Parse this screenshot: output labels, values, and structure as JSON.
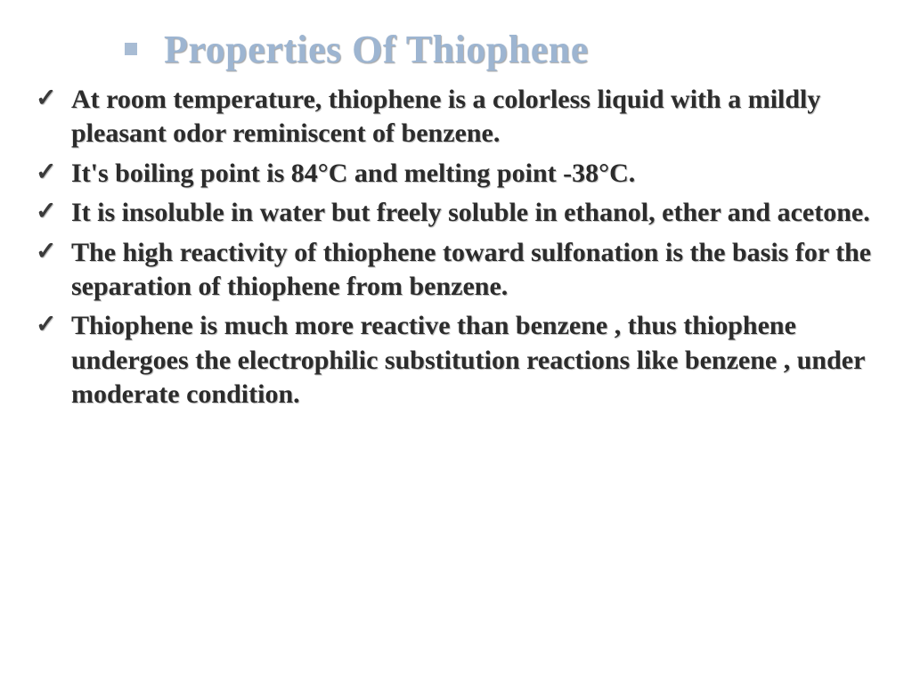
{
  "title": "Properties Of Thiophene",
  "title_color": "#9db5d1",
  "square_bullet_color": "#a8bcd4",
  "text_color": "#2c2c2c",
  "background_color": "#ffffff",
  "title_fontsize": 44,
  "body_fontsize": 30,
  "font_family": "Times New Roman",
  "checkmark": "✓",
  "items": [
    "At room temperature, thiophene is a colorless liquid with a mildly pleasant odor reminiscent of benzene.",
    "It's boiling point is 84°C and melting point -38°C.",
    "It is insoluble in water but freely soluble in ethanol, ether and acetone.",
    "The high reactivity of thiophene toward sulfonation is the basis for the separation of thiophene from benzene.",
    "Thiophene is much more reactive than benzene , thus thiophene undergoes the electrophilic substitution reactions like benzene , under moderate condition."
  ]
}
